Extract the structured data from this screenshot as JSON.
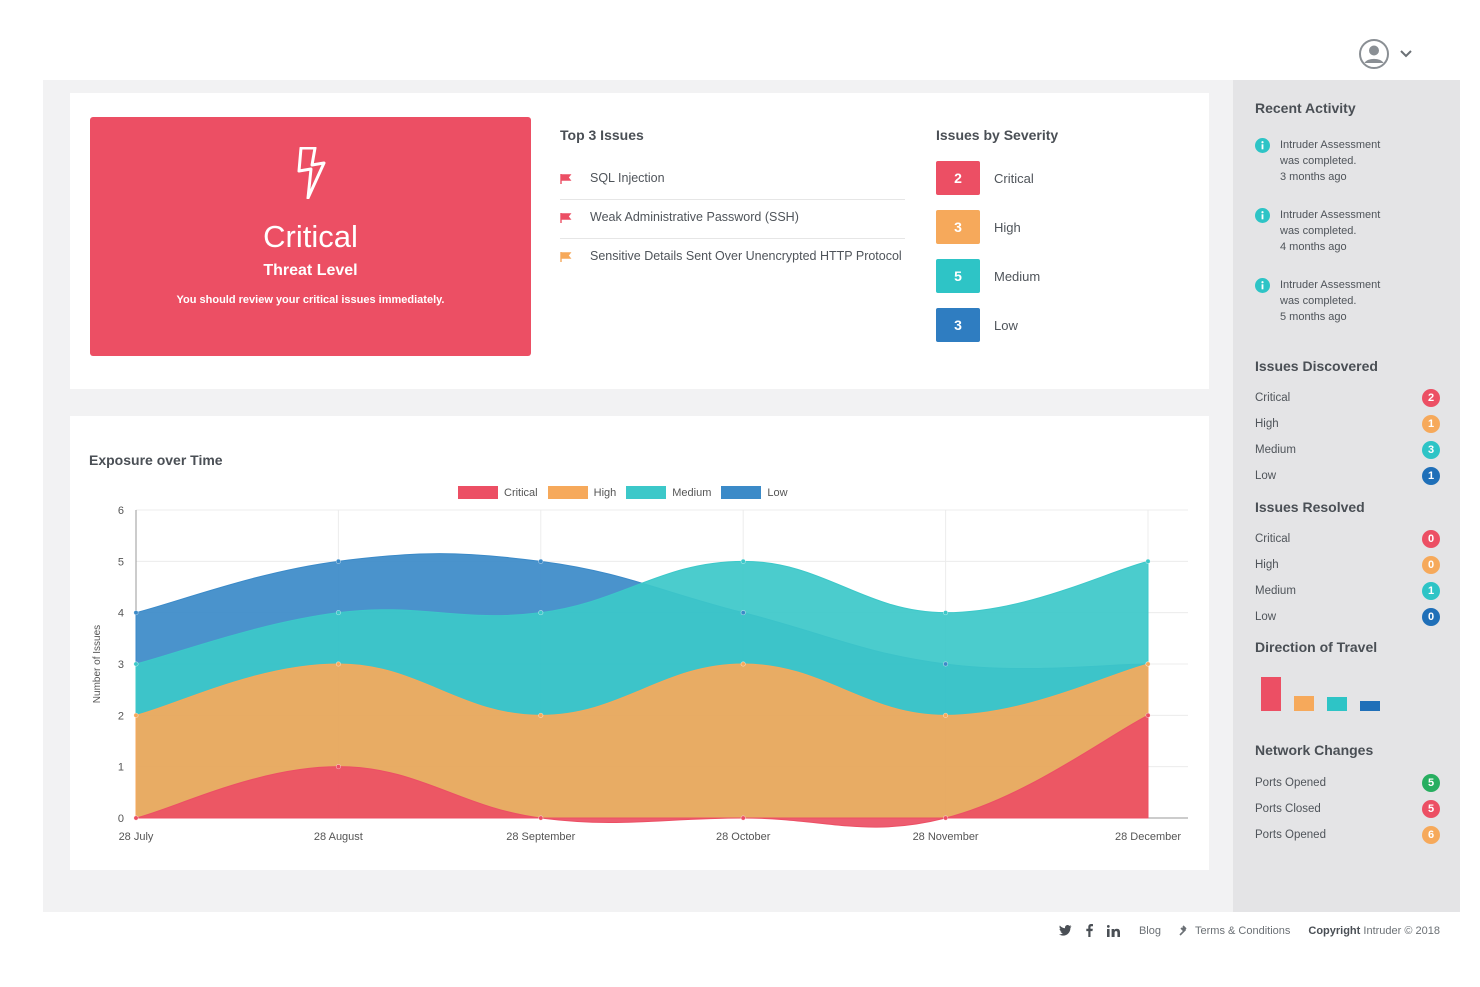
{
  "threat": {
    "level": "Critical",
    "label": "Threat Level",
    "message": "You should review your critical issues immediately."
  },
  "top_issues": {
    "title": "Top 3 Issues",
    "items": [
      {
        "text": "SQL Injection",
        "color": "#ec4f64"
      },
      {
        "text": "Weak Administrative Password (SSH)",
        "color": "#ec4f64"
      },
      {
        "text": "Sensitive Details Sent Over Unencrypted HTTP Protocol",
        "color": "#f6a95b"
      }
    ]
  },
  "severity": {
    "title": "Issues by Severity",
    "items": [
      {
        "count": "2",
        "label": "Critical",
        "color": "#ec4f64"
      },
      {
        "count": "3",
        "label": "High",
        "color": "#f6a95b"
      },
      {
        "count": "5",
        "label": "Medium",
        "color": "#2ec4c6"
      },
      {
        "count": "3",
        "label": "Low",
        "color": "#2f7dc1"
      }
    ]
  },
  "chart_data": {
    "type": "area",
    "title": "Exposure over Time",
    "ylabel": "Number of Issues",
    "xlabel": "",
    "categories": [
      "28 July",
      "28 August",
      "28 September",
      "28 October",
      "28 November",
      "28 December"
    ],
    "ylim": [
      0,
      6
    ],
    "yticks": [
      "0",
      "1",
      "2",
      "3",
      "4",
      "5",
      "6"
    ],
    "legend_position": "top",
    "grid": true,
    "series": [
      {
        "name": "Critical",
        "color": "#ec4f64",
        "values": [
          0,
          1,
          0,
          0,
          0,
          2
        ]
      },
      {
        "name": "High",
        "color": "#f6a95b",
        "values": [
          2,
          3,
          2,
          3,
          2,
          3
        ]
      },
      {
        "name": "Medium",
        "color": "#3cc8c9",
        "values": [
          3,
          4,
          4,
          5,
          4,
          5
        ]
      },
      {
        "name": "Low",
        "color": "#3b8ac8",
        "values": [
          4,
          5,
          5,
          4,
          3,
          3
        ]
      }
    ]
  },
  "sidebar": {
    "recent_activity": {
      "title": "Recent Activity",
      "items": [
        {
          "line1": "Intruder Assessment",
          "line2": "was completed.",
          "time": "3 months ago"
        },
        {
          "line1": "Intruder Assessment",
          "line2": "was completed.",
          "time": "4 months ago"
        },
        {
          "line1": "Intruder Assessment",
          "line2": "was completed.",
          "time": "5 months ago"
        }
      ]
    },
    "discovered": {
      "title": "Issues Discovered",
      "rows": [
        {
          "label": "Critical",
          "value": "2",
          "color": "#ec4f64"
        },
        {
          "label": "High",
          "value": "1",
          "color": "#f6a95b"
        },
        {
          "label": "Medium",
          "value": "3",
          "color": "#2ec4c6"
        },
        {
          "label": "Low",
          "value": "1",
          "color": "#1f6fb8"
        }
      ]
    },
    "resolved": {
      "title": "Issues Resolved",
      "rows": [
        {
          "label": "Critical",
          "value": "0",
          "color": "#ec4f64"
        },
        {
          "label": "High",
          "value": "0",
          "color": "#f6a95b"
        },
        {
          "label": "Medium",
          "value": "1",
          "color": "#2ec4c6"
        },
        {
          "label": "Low",
          "value": "0",
          "color": "#1f6fb8"
        }
      ]
    },
    "travel": {
      "title": "Direction of Travel",
      "bars": [
        {
          "name": "Critical",
          "value": 1.0,
          "color": "#ec4f64"
        },
        {
          "name": "High",
          "value": 0.45,
          "color": "#f6a95b"
        },
        {
          "name": "Medium",
          "value": 0.4,
          "color": "#2ec4c6"
        },
        {
          "name": "Low",
          "value": 0.28,
          "color": "#1f6fb8"
        }
      ]
    },
    "network": {
      "title": "Network Changes",
      "rows": [
        {
          "label": "Ports Opened",
          "value": "5",
          "color": "#27ae60"
        },
        {
          "label": "Ports Closed",
          "value": "5",
          "color": "#ec4f64"
        },
        {
          "label": "Ports Opened",
          "value": "6",
          "color": "#f6a95b"
        }
      ]
    }
  },
  "footer": {
    "blog": "Blog",
    "terms": "Terms & Conditions",
    "copyright_label": "Copyright",
    "copyright_rest": "Intruder © 2018"
  }
}
